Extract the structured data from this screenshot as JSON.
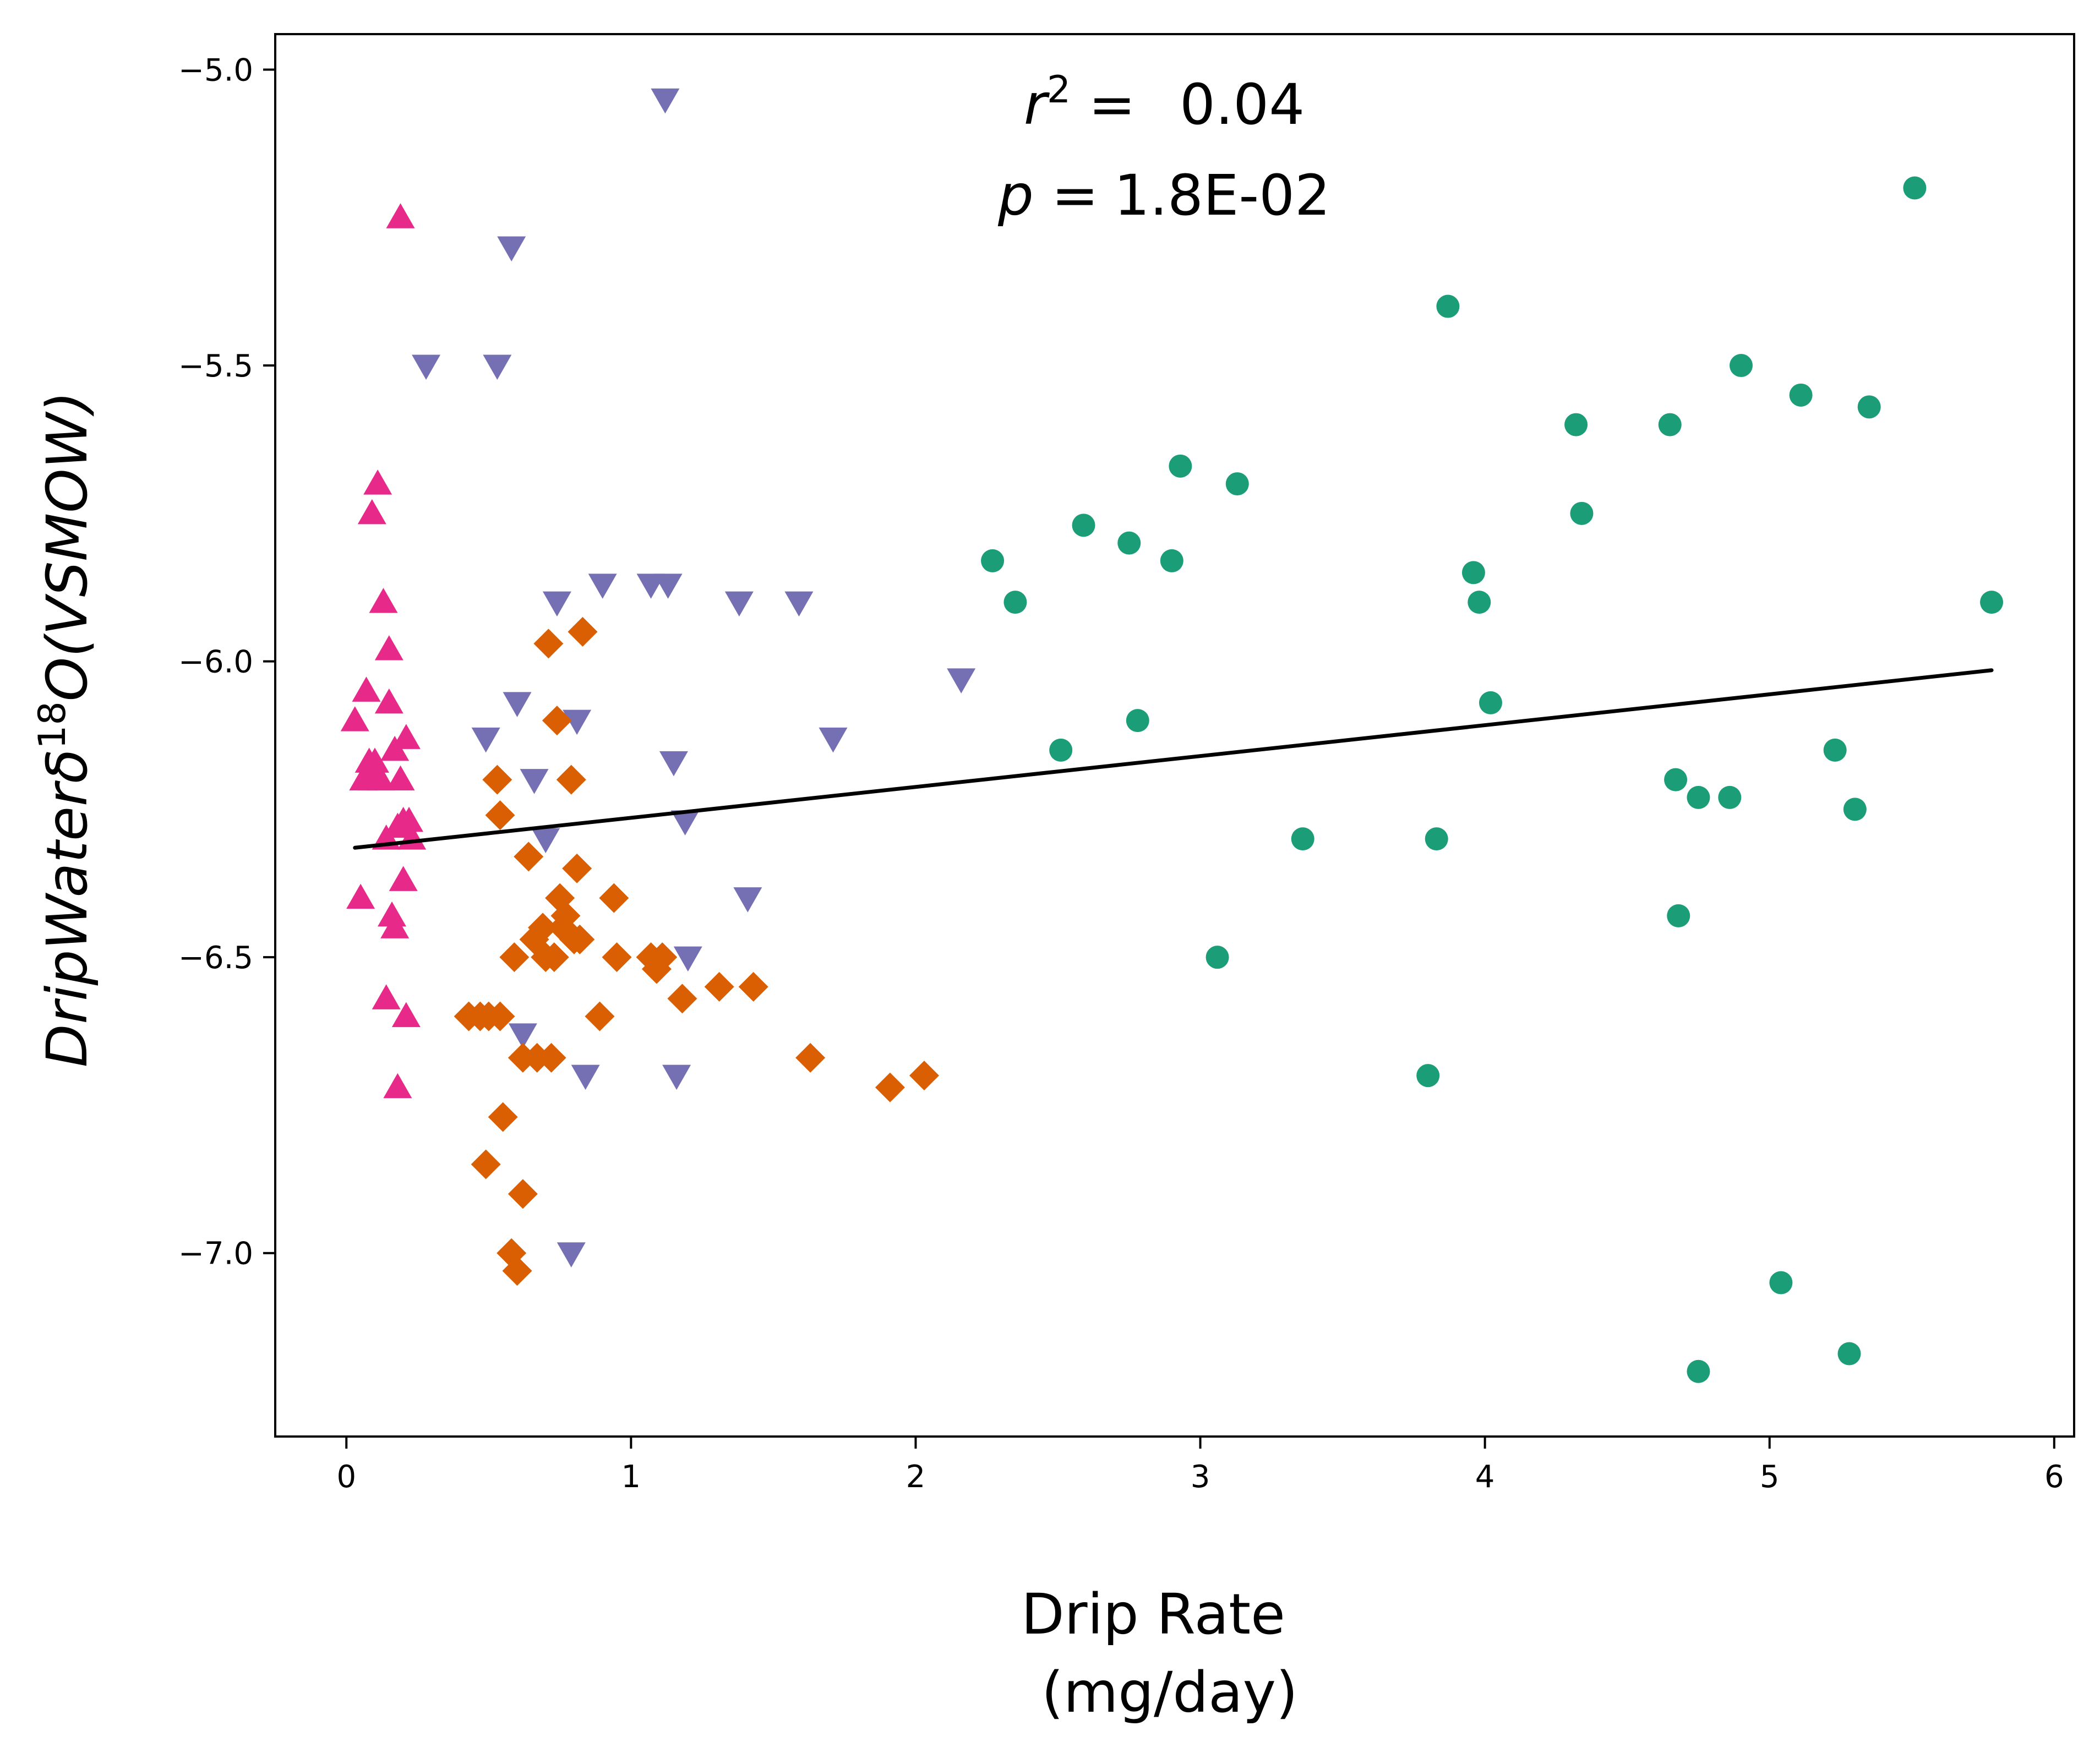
{
  "chart_data": {
    "type": "scatter",
    "xlabel_line1": "Drip Rate",
    "xlabel_line2": "(mg/day)",
    "ylabel_italic": "DripWaterδ",
    "ylabel_sup": "18",
    "ylabel_tail": "O(VSMOW)",
    "annotation_r2_symbol": "r",
    "annotation_r2_sup": "2",
    "annotation_r2_eq": " =",
    "annotation_r2_value": "0.04",
    "annotation_p_symbol": "p",
    "annotation_p_eq": " =",
    "annotation_p_value": "1.8E-02",
    "xlim": [
      -0.25,
      6.07
    ],
    "ylim": [
      -7.31,
      -4.94
    ],
    "xticks": [
      0,
      1,
      2,
      3,
      4,
      5,
      6
    ],
    "xtick_labels": [
      "0",
      "1",
      "2",
      "3",
      "4",
      "5",
      "6"
    ],
    "yticks": [
      -5.0,
      -5.5,
      -6.0,
      -6.5,
      -7.0
    ],
    "ytick_labels": [
      "−5.0",
      "−5.5",
      "−6.0",
      "−6.5",
      "−7.0"
    ],
    "grid": false,
    "regression": {
      "x": [
        0.03,
        5.78
      ],
      "y": [
        -6.315,
        -6.015
      ],
      "color": "#000000"
    },
    "series": [
      {
        "marker": "circle",
        "color": "#1b9e77",
        "points": [
          [
            2.27,
            -5.83
          ],
          [
            2.35,
            -5.9
          ],
          [
            2.51,
            -6.15
          ],
          [
            2.59,
            -5.77
          ],
          [
            2.75,
            -5.8
          ],
          [
            2.78,
            -6.1
          ],
          [
            2.9,
            -5.83
          ],
          [
            2.93,
            -5.67
          ],
          [
            3.06,
            -6.5
          ],
          [
            3.13,
            -5.7
          ],
          [
            3.36,
            -6.3
          ],
          [
            3.8,
            -6.7
          ],
          [
            3.83,
            -6.3
          ],
          [
            3.87,
            -5.4
          ],
          [
            3.96,
            -5.85
          ],
          [
            3.98,
            -5.9
          ],
          [
            4.02,
            -6.07
          ],
          [
            4.32,
            -5.6
          ],
          [
            4.34,
            -5.75
          ],
          [
            4.65,
            -5.6
          ],
          [
            4.67,
            -6.2
          ],
          [
            4.68,
            -6.43
          ],
          [
            4.75,
            -6.23
          ],
          [
            4.75,
            -7.2
          ],
          [
            4.86,
            -6.23
          ],
          [
            4.9,
            -5.5
          ],
          [
            5.04,
            -7.05
          ],
          [
            5.11,
            -5.55
          ],
          [
            5.23,
            -6.15
          ],
          [
            5.28,
            -7.17
          ],
          [
            5.3,
            -6.25
          ],
          [
            5.35,
            -5.57
          ],
          [
            5.51,
            -5.2
          ],
          [
            5.78,
            -5.9
          ]
        ]
      },
      {
        "marker": "triangle-up",
        "color": "#e7298a",
        "points": [
          [
            0.03,
            -6.1
          ],
          [
            0.05,
            -6.4
          ],
          [
            0.06,
            -6.2
          ],
          [
            0.07,
            -6.05
          ],
          [
            0.08,
            -6.17
          ],
          [
            0.09,
            -5.75
          ],
          [
            0.09,
            -6.2
          ],
          [
            0.1,
            -6.17
          ],
          [
            0.11,
            -5.7
          ],
          [
            0.12,
            -6.2
          ],
          [
            0.13,
            -5.9
          ],
          [
            0.14,
            -6.3
          ],
          [
            0.14,
            -6.57
          ],
          [
            0.15,
            -5.98
          ],
          [
            0.15,
            -6.07
          ],
          [
            0.16,
            -6.43
          ],
          [
            0.17,
            -6.15
          ],
          [
            0.17,
            -6.45
          ],
          [
            0.18,
            -6.28
          ],
          [
            0.18,
            -6.72
          ],
          [
            0.19,
            -5.25
          ],
          [
            0.19,
            -6.2
          ],
          [
            0.2,
            -6.27
          ],
          [
            0.2,
            -6.37
          ],
          [
            0.21,
            -6.13
          ],
          [
            0.21,
            -6.6
          ],
          [
            0.22,
            -6.27
          ],
          [
            0.23,
            -6.3
          ]
        ]
      },
      {
        "marker": "triangle-down",
        "color": "#7570b3",
        "points": [
          [
            0.28,
            -5.5
          ],
          [
            0.49,
            -6.13
          ],
          [
            0.53,
            -5.5
          ],
          [
            0.58,
            -5.3
          ],
          [
            0.6,
            -6.07
          ],
          [
            0.62,
            -6.63
          ],
          [
            0.66,
            -6.2
          ],
          [
            0.7,
            -6.3
          ],
          [
            0.74,
            -5.9
          ],
          [
            0.79,
            -7.0
          ],
          [
            0.81,
            -6.1
          ],
          [
            0.84,
            -6.7
          ],
          [
            0.9,
            -5.87
          ],
          [
            1.07,
            -5.87
          ],
          [
            1.12,
            -5.05
          ],
          [
            1.13,
            -5.87
          ],
          [
            1.15,
            -6.17
          ],
          [
            1.16,
            -6.7
          ],
          [
            1.19,
            -6.27
          ],
          [
            1.2,
            -6.5
          ],
          [
            1.38,
            -5.9
          ],
          [
            1.41,
            -6.4
          ],
          [
            1.59,
            -5.9
          ],
          [
            1.71,
            -6.13
          ],
          [
            2.16,
            -6.03
          ]
        ]
      },
      {
        "marker": "diamond",
        "color": "#d95f02",
        "points": [
          [
            0.43,
            -6.6
          ],
          [
            0.47,
            -6.6
          ],
          [
            0.49,
            -6.85
          ],
          [
            0.5,
            -6.6
          ],
          [
            0.53,
            -6.2
          ],
          [
            0.54,
            -6.26
          ],
          [
            0.54,
            -6.6
          ],
          [
            0.55,
            -6.77
          ],
          [
            0.58,
            -7.0
          ],
          [
            0.59,
            -6.5
          ],
          [
            0.6,
            -7.03
          ],
          [
            0.62,
            -6.67
          ],
          [
            0.62,
            -6.9
          ],
          [
            0.64,
            -6.33
          ],
          [
            0.66,
            -6.47
          ],
          [
            0.67,
            -6.67
          ],
          [
            0.69,
            -6.45
          ],
          [
            0.7,
            -6.5
          ],
          [
            0.71,
            -5.97
          ],
          [
            0.72,
            -6.67
          ],
          [
            0.73,
            -6.5
          ],
          [
            0.74,
            -6.1
          ],
          [
            0.75,
            -6.4
          ],
          [
            0.76,
            -6.45
          ],
          [
            0.77,
            -6.43
          ],
          [
            0.79,
            -6.2
          ],
          [
            0.8,
            -6.47
          ],
          [
            0.81,
            -6.35
          ],
          [
            0.82,
            -6.47
          ],
          [
            0.83,
            -5.95
          ],
          [
            0.89,
            -6.6
          ],
          [
            0.94,
            -6.4
          ],
          [
            0.95,
            -6.5
          ],
          [
            1.07,
            -6.5
          ],
          [
            1.09,
            -6.52
          ],
          [
            1.11,
            -6.5
          ],
          [
            1.18,
            -6.57
          ],
          [
            1.31,
            -6.55
          ],
          [
            1.43,
            -6.55
          ],
          [
            1.63,
            -6.67
          ],
          [
            1.91,
            -6.72
          ],
          [
            2.03,
            -6.7
          ]
        ]
      }
    ]
  }
}
